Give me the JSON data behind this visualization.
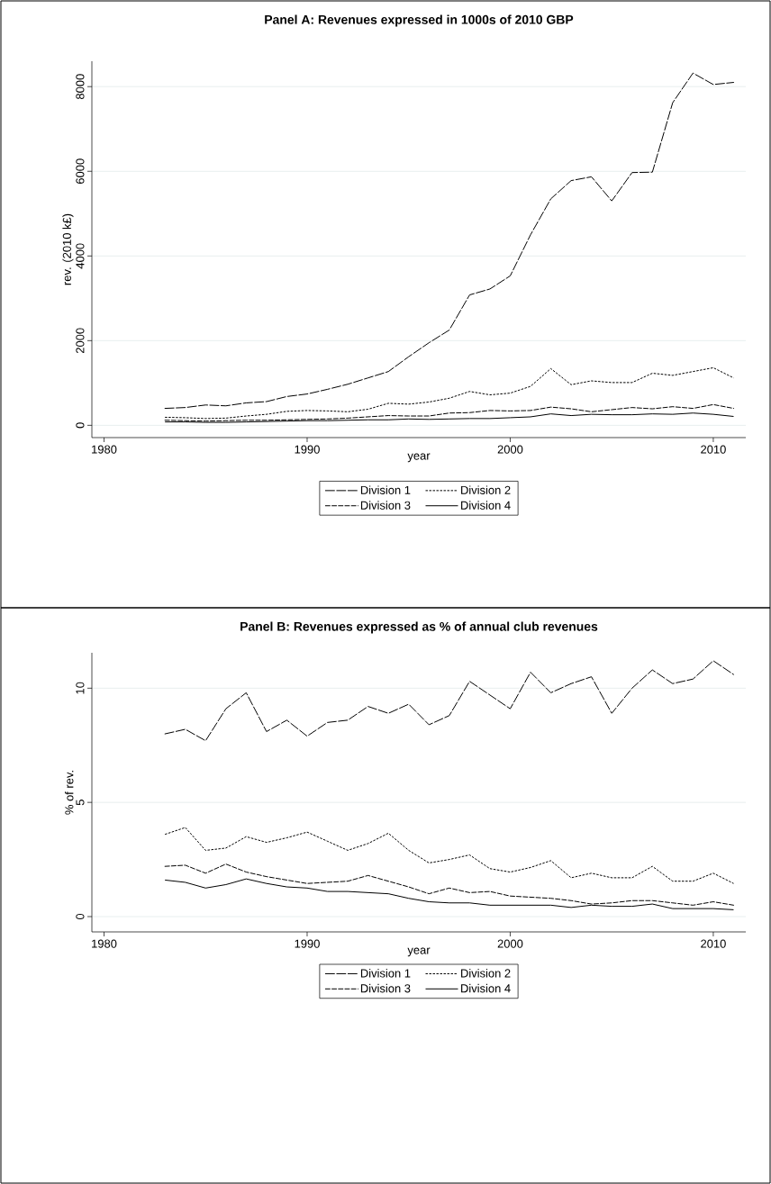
{
  "chart_data": [
    {
      "type": "line",
      "title": "Panel A: Revenues expressed in 1000s of 2010 GBP",
      "xlabel": "year",
      "ylabel": "rev. (2010 k£)",
      "x": [
        1983,
        1984,
        1985,
        1986,
        1987,
        1988,
        1989,
        1990,
        1991,
        1992,
        1993,
        1994,
        1995,
        1996,
        1997,
        1998,
        1999,
        2000,
        2001,
        2002,
        2003,
        2004,
        2005,
        2006,
        2007,
        2008,
        2009,
        2010,
        2011
      ],
      "xlim": [
        1979.4,
        2011.6
      ],
      "xticks": [
        1980,
        1990,
        2000,
        2010
      ],
      "ylim": [
        -290,
        8600
      ],
      "yticks": [
        0,
        2000,
        4000,
        6000,
        8000
      ],
      "grid": "y",
      "legend": "bottom",
      "marker": "none",
      "series": [
        {
          "name": "Division 1",
          "color": "#000000",
          "line_style": "dashed",
          "values": [
            400,
            420,
            480,
            460,
            530,
            560,
            680,
            740,
            850,
            970,
            1120,
            1270,
            1620,
            1950,
            2250,
            3080,
            3220,
            3530,
            4500,
            5350,
            5780,
            5870,
            5300,
            5970,
            5980,
            7620,
            8320,
            8050,
            8100
          ]
        },
        {
          "name": "Division 2",
          "color": "#000000",
          "line_style": "dotted",
          "values": [
            190,
            180,
            160,
            170,
            220,
            260,
            330,
            350,
            340,
            320,
            380,
            520,
            500,
            550,
            640,
            800,
            720,
            760,
            920,
            1340,
            960,
            1050,
            1010,
            1010,
            1230,
            1180,
            1270,
            1360,
            1120
          ]
        },
        {
          "name": "Division 3",
          "color": "#000000",
          "line_style": "dashed",
          "values": [
            120,
            110,
            100,
            110,
            120,
            120,
            130,
            140,
            150,
            170,
            200,
            230,
            220,
            220,
            290,
            300,
            350,
            340,
            350,
            430,
            390,
            320,
            370,
            420,
            390,
            440,
            400,
            490,
            400
          ]
        },
        {
          "name": "Division 4",
          "color": "#000000",
          "line_style": "solid",
          "values": [
            80,
            80,
            70,
            70,
            80,
            90,
            100,
            110,
            110,
            120,
            130,
            130,
            150,
            140,
            150,
            160,
            160,
            180,
            200,
            270,
            230,
            260,
            250,
            250,
            270,
            260,
            290,
            260,
            210
          ]
        }
      ]
    },
    {
      "type": "line",
      "title": "Panel B: Revenues expressed as % of annual club revenues",
      "xlabel": "year",
      "ylabel": "% of rev.",
      "x": [
        1983,
        1984,
        1985,
        1986,
        1987,
        1988,
        1989,
        1990,
        1991,
        1992,
        1993,
        1994,
        1995,
        1996,
        1997,
        1998,
        1999,
        2000,
        2001,
        2002,
        2003,
        2004,
        2005,
        2006,
        2007,
        2008,
        2009,
        2010,
        2011
      ],
      "xlim": [
        1979.4,
        2011.6
      ],
      "xticks": [
        1980,
        1990,
        2000,
        2010
      ],
      "ylim": [
        -0.67,
        11.55
      ],
      "yticks": [
        0,
        5,
        10
      ],
      "grid": "y",
      "legend": "bottom",
      "marker": "none",
      "series": [
        {
          "name": "Division 1",
          "color": "#000000",
          "line_style": "dashed",
          "values": [
            8.0,
            8.2,
            7.7,
            9.1,
            9.8,
            8.1,
            8.6,
            7.9,
            8.5,
            8.6,
            9.2,
            8.9,
            9.3,
            8.4,
            8.8,
            10.3,
            9.7,
            9.1,
            10.7,
            9.8,
            10.2,
            10.5,
            8.9,
            10.0,
            10.8,
            10.2,
            10.4,
            11.2,
            10.6
          ]
        },
        {
          "name": "Division 2",
          "color": "#000000",
          "line_style": "dotted",
          "values": [
            3.6,
            3.9,
            2.9,
            3.0,
            3.5,
            3.25,
            3.45,
            3.7,
            3.3,
            2.9,
            3.2,
            3.65,
            2.9,
            2.35,
            2.5,
            2.7,
            2.1,
            1.95,
            2.15,
            2.45,
            1.7,
            1.9,
            1.7,
            1.7,
            2.2,
            1.55,
            1.55,
            1.9,
            1.45
          ]
        },
        {
          "name": "Division 3",
          "color": "#000000",
          "line_style": "dashed",
          "values": [
            2.2,
            2.25,
            1.9,
            2.3,
            1.95,
            1.75,
            1.6,
            1.45,
            1.5,
            1.55,
            1.8,
            1.55,
            1.3,
            1.0,
            1.25,
            1.05,
            1.1,
            0.9,
            0.85,
            0.8,
            0.7,
            0.55,
            0.6,
            0.7,
            0.7,
            0.6,
            0.5,
            0.65,
            0.5
          ]
        },
        {
          "name": "Division 4",
          "color": "#000000",
          "line_style": "solid",
          "values": [
            1.6,
            1.5,
            1.25,
            1.4,
            1.65,
            1.45,
            1.3,
            1.25,
            1.1,
            1.1,
            1.05,
            1.0,
            0.8,
            0.65,
            0.6,
            0.6,
            0.5,
            0.5,
            0.5,
            0.5,
            0.4,
            0.5,
            0.45,
            0.45,
            0.55,
            0.35,
            0.35,
            0.35,
            0.3
          ]
        }
      ]
    }
  ]
}
